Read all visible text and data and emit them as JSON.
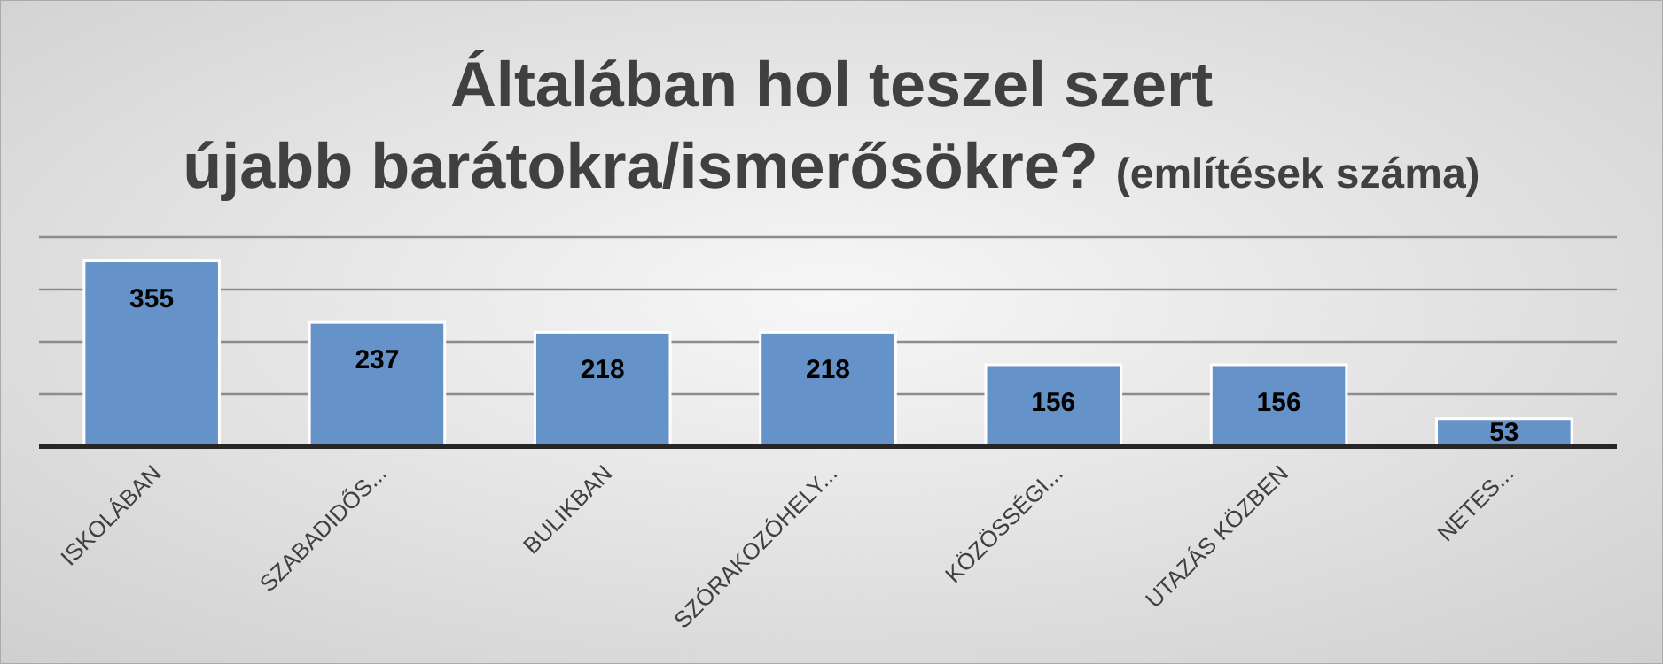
{
  "chart_data": {
    "type": "bar",
    "title": "Általában hol teszel szert újabb barátokra/ismerősökre?",
    "subtitle": "(említések száma)",
    "categories": [
      "ISKOLÁBAN",
      "SZABADIDŐS...",
      "BULIKBAN",
      "SZÓRAKOZÓHELY...",
      "KÖZÖSSÉGI...",
      "UTAZÁS KÖZBEN",
      "NETES..."
    ],
    "values": [
      355,
      237,
      218,
      218,
      156,
      156,
      53
    ],
    "color": "#6592c8",
    "ylim": [
      0,
      400
    ],
    "yticks": [
      {
        "value": 0,
        "label": null
      },
      {
        "value": 100,
        "label": null
      },
      {
        "value": 200,
        "label": null
      },
      {
        "value": 300,
        "label": null
      },
      {
        "value": 400,
        "label": null
      }
    ],
    "grid": "y",
    "data_labels": true,
    "tick_labels": "x"
  }
}
